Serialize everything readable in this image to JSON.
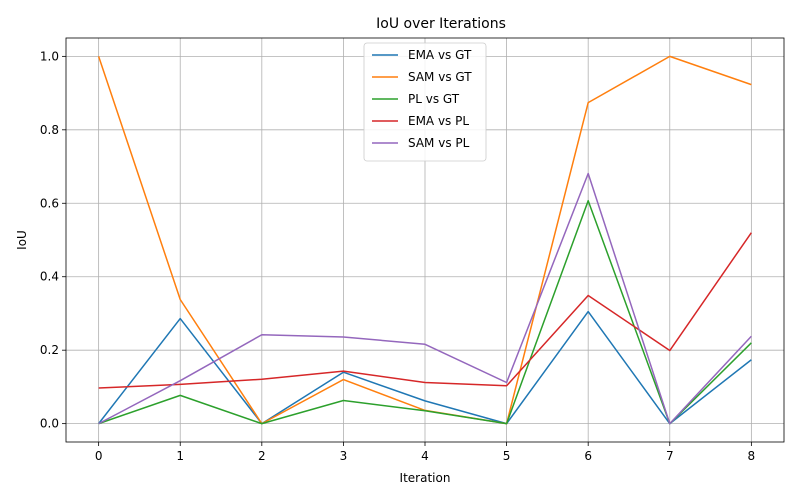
{
  "chart_data": {
    "type": "line",
    "title": "IoU over Iterations",
    "xlabel": "Iteration",
    "ylabel": "IoU",
    "x": [
      0,
      1,
      2,
      3,
      4,
      5,
      6,
      7,
      8
    ],
    "xlim": [
      -0.4,
      8.4
    ],
    "ylim": [
      -0.05,
      1.05
    ],
    "xticks": [
      0,
      1,
      2,
      3,
      4,
      5,
      6,
      7,
      8
    ],
    "yticks": [
      0.0,
      0.2,
      0.4,
      0.6,
      0.8,
      1.0
    ],
    "ytick_labels": [
      "0.0",
      "0.2",
      "0.4",
      "0.6",
      "0.8",
      "1.0"
    ],
    "grid": true,
    "legend_position": "upper-center",
    "series": [
      {
        "name": "EMA vs GT",
        "color": "#1f77b4",
        "values": [
          0.0,
          0.286,
          0.0,
          0.14,
          0.062,
          0.0,
          0.305,
          0.0,
          0.174
        ]
      },
      {
        "name": "SAM vs GT",
        "color": "#ff7f0e",
        "values": [
          1.0,
          0.338,
          0.0,
          0.12,
          0.036,
          0.0,
          0.874,
          1.0,
          0.923
        ]
      },
      {
        "name": "PL vs GT",
        "color": "#2ca02c",
        "values": [
          0.0,
          0.077,
          0.0,
          0.063,
          0.035,
          0.0,
          0.607,
          0.0,
          0.22
        ]
      },
      {
        "name": "EMA vs PL",
        "color": "#d62728",
        "values": [
          0.097,
          0.107,
          0.121,
          0.143,
          0.112,
          0.103,
          0.349,
          0.199,
          0.52
        ]
      },
      {
        "name": "SAM vs PL",
        "color": "#9467bd",
        "values": [
          0.0,
          0.117,
          0.242,
          0.236,
          0.216,
          0.112,
          0.681,
          0.0,
          0.238
        ]
      }
    ]
  }
}
